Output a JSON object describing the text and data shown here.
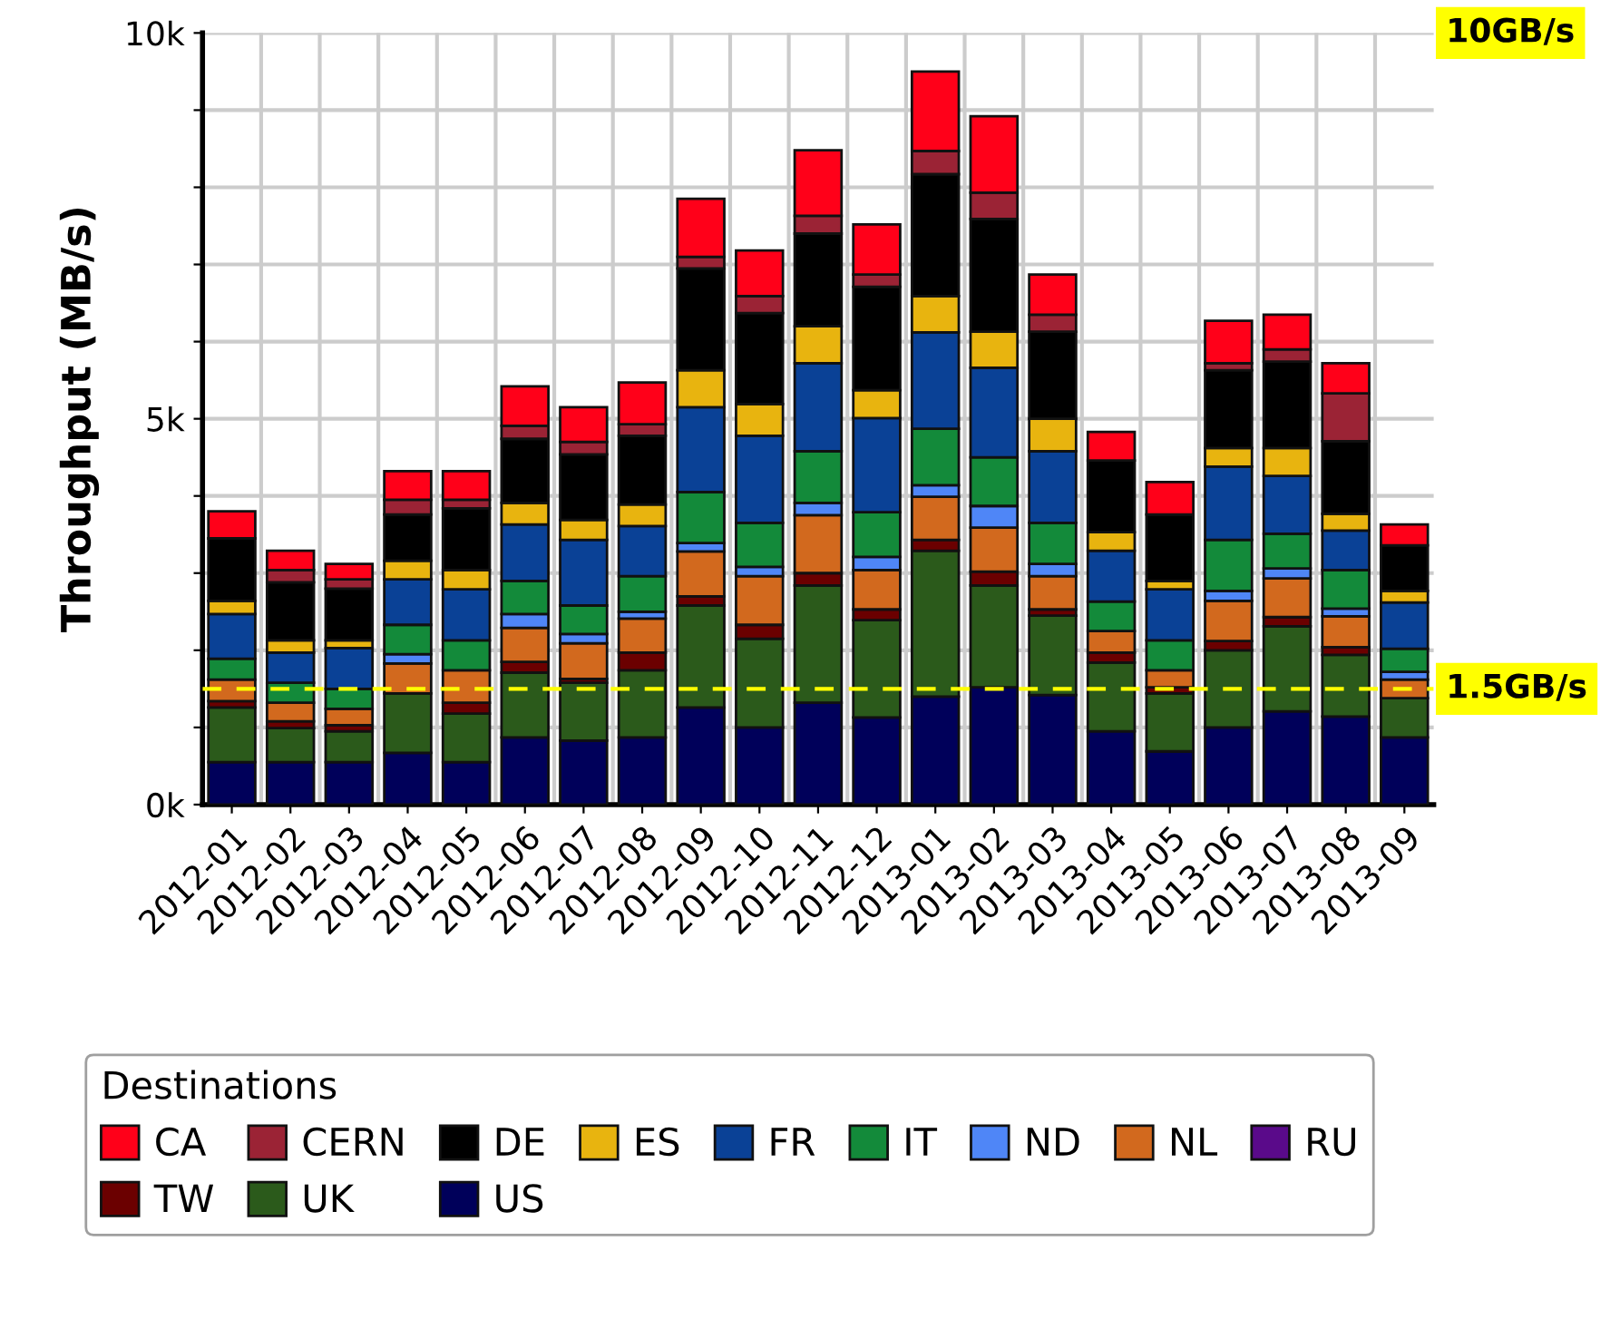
{
  "chart_data": {
    "type": "bar",
    "stacked": true,
    "ylabel": "Throughput (MB/s)",
    "legend_title": "Destinations",
    "legend": "bottom",
    "grid": true,
    "categories": [
      "2012-01",
      "2012-02",
      "2012-03",
      "2012-04",
      "2012-05",
      "2012-06",
      "2012-07",
      "2012-08",
      "2012-09",
      "2012-10",
      "2012-11",
      "2012-12",
      "2013-01",
      "2013-02",
      "2013-03",
      "2013-04",
      "2013-05",
      "2013-06",
      "2013-07",
      "2013-08",
      "2013-09"
    ],
    "ylim": [
      0,
      10000
    ],
    "yticks": [
      {
        "value": 0,
        "label": "0k"
      },
      {
        "value": 1000,
        "label": null
      },
      {
        "value": 2000,
        "label": null
      },
      {
        "value": 3000,
        "label": null
      },
      {
        "value": 4000,
        "label": null
      },
      {
        "value": 5000,
        "label": "5k"
      },
      {
        "value": 6000,
        "label": null
      },
      {
        "value": 7000,
        "label": null
      },
      {
        "value": 8000,
        "label": null
      },
      {
        "value": 9000,
        "label": null
      },
      {
        "value": 10000,
        "label": "10k"
      }
    ],
    "ref_lines": [
      {
        "axis": "y",
        "value": 1500,
        "label": "1.5GB/s",
        "color": "#ffff00",
        "line_style": "dashed"
      }
    ],
    "annotations": [
      "10GB/s"
    ],
    "series": [
      {
        "name": "US",
        "color": "#00005a",
        "values": [
          550,
          550,
          550,
          670,
          550,
          870,
          830,
          870,
          1260,
          1000,
          1320,
          1130,
          1400,
          1520,
          1420,
          950,
          690,
          1000,
          1210,
          1140,
          870
        ]
      },
      {
        "name": "UK",
        "color": "#2b5a1b",
        "values": [
          710,
          440,
          400,
          770,
          630,
          840,
          750,
          870,
          1320,
          1150,
          1520,
          1260,
          1890,
          1320,
          1030,
          890,
          750,
          1000,
          1100,
          800,
          510
        ]
      },
      {
        "name": "TW",
        "color": "#6b0000",
        "values": [
          80,
          90,
          80,
          0,
          140,
          140,
          50,
          230,
          120,
          180,
          160,
          140,
          140,
          180,
          80,
          130,
          80,
          120,
          120,
          100,
          0
        ]
      },
      {
        "name": "RU",
        "color": "#5a0a8a",
        "values": [
          0,
          0,
          0,
          0,
          0,
          0,
          0,
          0,
          0,
          0,
          0,
          0,
          0,
          0,
          0,
          0,
          0,
          0,
          0,
          0,
          0
        ]
      },
      {
        "name": "NL",
        "color": "#d2691e",
        "values": [
          280,
          240,
          210,
          390,
          420,
          440,
          460,
          440,
          580,
          630,
          750,
          510,
          560,
          570,
          430,
          280,
          220,
          520,
          500,
          400,
          240
        ]
      },
      {
        "name": "ND",
        "color": "#4f86f7",
        "values": [
          0,
          0,
          0,
          120,
          0,
          180,
          120,
          90,
          110,
          120,
          160,
          170,
          150,
          280,
          160,
          0,
          0,
          130,
          130,
          100,
          100
        ]
      },
      {
        "name": "IT",
        "color": "#138a3a",
        "values": [
          270,
          260,
          260,
          380,
          390,
          430,
          370,
          460,
          660,
          570,
          670,
          580,
          730,
          630,
          530,
          380,
          390,
          660,
          450,
          500,
          300
        ]
      },
      {
        "name": "FR",
        "color": "#0a4196",
        "values": [
          580,
          390,
          530,
          590,
          660,
          730,
          850,
          650,
          1100,
          1130,
          1140,
          1220,
          1250,
          1160,
          930,
          660,
          660,
          950,
          750,
          510,
          600
        ]
      },
      {
        "name": "ES",
        "color": "#e8b40f",
        "values": [
          170,
          160,
          100,
          240,
          250,
          280,
          260,
          280,
          480,
          410,
          480,
          360,
          470,
          470,
          420,
          240,
          110,
          240,
          360,
          220,
          150
        ]
      },
      {
        "name": "DE",
        "color": "#000000",
        "values": [
          810,
          750,
          670,
          600,
          800,
          830,
          850,
          890,
          1320,
          1180,
          1200,
          1340,
          1580,
          1460,
          1130,
          930,
          860,
          1010,
          1120,
          940,
          590
        ]
      },
      {
        "name": "CERN",
        "color": "#9b2335",
        "values": [
          0,
          160,
          120,
          190,
          110,
          170,
          160,
          150,
          150,
          220,
          230,
          160,
          300,
          340,
          220,
          0,
          0,
          90,
          160,
          620,
          0
        ]
      },
      {
        "name": "CA",
        "color": "#ff0019",
        "values": [
          350,
          250,
          200,
          370,
          370,
          510,
          450,
          540,
          750,
          590,
          850,
          650,
          1030,
          990,
          520,
          370,
          420,
          550,
          450,
          390,
          270
        ]
      }
    ]
  }
}
